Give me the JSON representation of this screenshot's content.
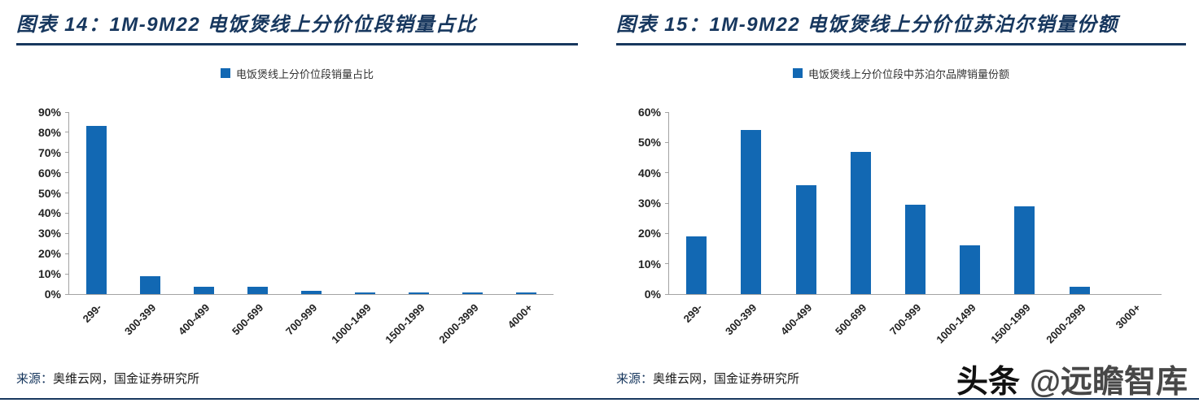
{
  "page": {
    "watermark": {
      "brand": "头条",
      "handle": "@远瞻智库"
    },
    "colors": {
      "bar_blue": "#1268b3",
      "title_navy": "#17375e",
      "axis_gray": "#a3a3a3"
    }
  },
  "chart_data": [
    {
      "type": "bar",
      "title": "图表 14：1M-9M22 电饭煲线上分价位段销量占比",
      "legend": [
        "电饭煲线上分价位段销量占比"
      ],
      "categories": [
        "299-",
        "300-399",
        "400-499",
        "500-699",
        "700-999",
        "1000-1499",
        "1500-1999",
        "2000-3999",
        "4000+"
      ],
      "values": [
        83,
        9,
        3.5,
        3.5,
        1.8,
        1,
        1,
        1,
        1
      ],
      "ylim": [
        0,
        90
      ],
      "ytick_step": 10,
      "ytick_labels": [
        "0%",
        "10%",
        "20%",
        "30%",
        "40%",
        "50%",
        "60%",
        "70%",
        "80%",
        "90%"
      ],
      "xlabel": "",
      "ylabel": "",
      "grid": false,
      "legend_position": "top",
      "source_label": "来源：",
      "source_text": "奥维云网，国金证券研究所"
    },
    {
      "type": "bar",
      "title": "图表 15：1M-9M22 电饭煲线上分价位苏泊尔销量份额",
      "legend": [
        "电饭煲线上分价位段中苏泊尔品牌销量份额"
      ],
      "categories": [
        "299-",
        "300-399",
        "400-499",
        "500-699",
        "700-999",
        "1000-1499",
        "1500-1999",
        "2000-2999",
        "3000+"
      ],
      "values": [
        19,
        54,
        36,
        47,
        29.5,
        16,
        29,
        2.5,
        0
      ],
      "ylim": [
        0,
        60
      ],
      "ytick_step": 10,
      "ytick_labels": [
        "0%",
        "10%",
        "20%",
        "30%",
        "40%",
        "50%",
        "60%"
      ],
      "xlabel": "",
      "ylabel": "",
      "grid": false,
      "legend_position": "top",
      "source_label": "来源：",
      "source_text": "奥维云网，国金证券研究所"
    }
  ]
}
